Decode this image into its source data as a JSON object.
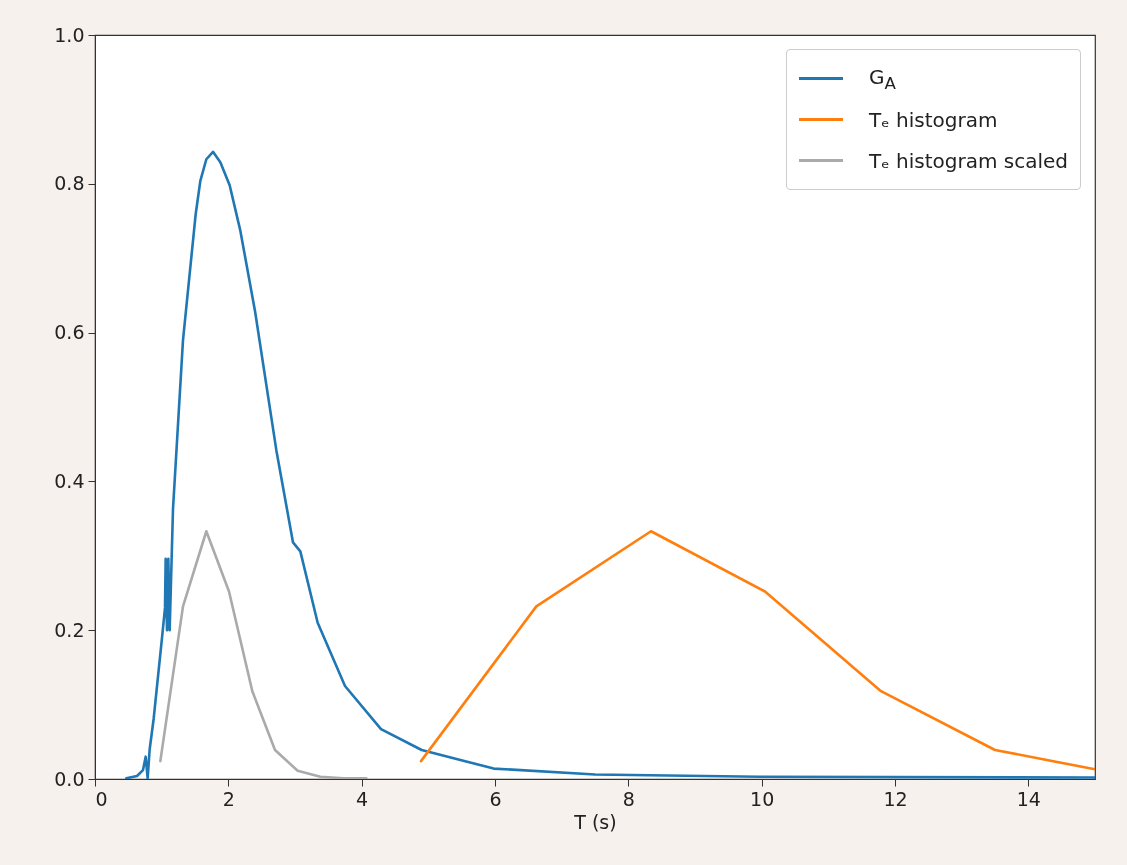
{
  "chart_data": {
    "type": "line",
    "xlabel": "T (s)",
    "xlim": [
      0,
      15
    ],
    "ylim": [
      0,
      1
    ],
    "xticks": [
      0,
      2,
      4,
      6,
      8,
      10,
      12,
      14
    ],
    "yticks": [
      {
        "value": 0,
        "label": "0.0"
      },
      {
        "value": 0.2,
        "label": "0.2"
      },
      {
        "value": 0.4,
        "label": "0.4"
      },
      {
        "value": 0.6,
        "label": "0.6"
      },
      {
        "value": 0.8,
        "label": "0.8"
      },
      {
        "value": 1,
        "label": "1.0"
      }
    ],
    "legend": "top right",
    "grid": false,
    "line_style": "solid",
    "marker": "none",
    "series": [
      {
        "name": "G$_{A}$",
        "color": "#1f77b4",
        "x": [
          0.47,
          0.63,
          0.72,
          0.76,
          0.79,
          0.82,
          0.88,
          1.01,
          1.05,
          1.06,
          1.08,
          1.1,
          1.12,
          1.17,
          1.32,
          1.51,
          1.58,
          1.67,
          1.77,
          1.88,
          2.02,
          2.18,
          2.4,
          2.72,
          2.97,
          3.08,
          3.34,
          3.75,
          4.29,
          4.9,
          5.98,
          7.5,
          9.96,
          14.9,
          15
        ],
        "values": [
          0.001,
          0.004,
          0.012,
          0.03,
          0.001,
          0.04,
          0.081,
          0.194,
          0.23,
          0.296,
          0.2,
          0.296,
          0.2,
          0.363,
          0.59,
          0.759,
          0.804,
          0.833,
          0.843,
          0.829,
          0.798,
          0.737,
          0.629,
          0.442,
          0.318,
          0.306,
          0.21,
          0.125,
          0.067,
          0.039,
          0.014,
          0.006,
          0.003,
          0.002,
          0.002
        ]
      },
      {
        "name": "Tₑ histogram",
        "color": "#ff7f0e",
        "x": [
          4.89,
          6.62,
          8.34,
          10.05,
          11.79,
          13.5,
          15
        ],
        "values": [
          0.024,
          0.232,
          0.333,
          0.252,
          0.118,
          0.039,
          0.013
        ]
      },
      {
        "name": "Tₑ histogram scaled",
        "color": "#aaaaaa",
        "x": [
          0.98,
          1.32,
          1.67,
          2.01,
          2.36,
          2.7,
          3.04,
          3.38,
          3.73,
          4.07
        ],
        "values": [
          0.024,
          0.232,
          0.333,
          0.252,
          0.118,
          0.039,
          0.011,
          0.003,
          0.001,
          0.001
        ]
      }
    ]
  }
}
